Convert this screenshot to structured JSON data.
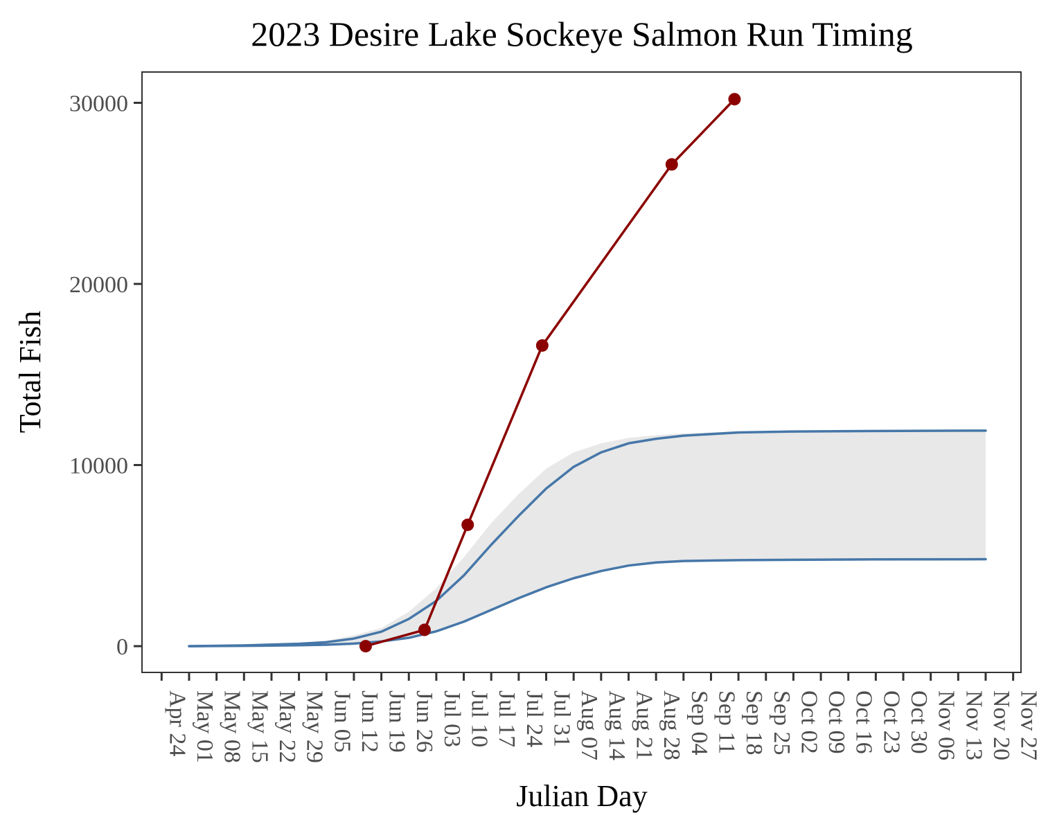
{
  "chart_data": {
    "type": "line",
    "title": "2023 Desire Lake Sockeye Salmon Run Timing",
    "xlabel": "Julian Day",
    "ylabel": "Total Fish",
    "xlim": [
      "2023-04-19",
      "2023-11-29"
    ],
    "ylim": [
      -1450,
      31700
    ],
    "grid": false,
    "legend": "none",
    "y_ticks": [
      {
        "value": 0,
        "label": "0"
      },
      {
        "value": 10000,
        "label": "10000"
      },
      {
        "value": 20000,
        "label": "20000"
      },
      {
        "value": 30000,
        "label": "30000"
      }
    ],
    "x_ticks": [
      {
        "date": "2023-04-24",
        "label": "Apr 24"
      },
      {
        "date": "2023-05-01",
        "label": "May 01"
      },
      {
        "date": "2023-05-08",
        "label": "May 08"
      },
      {
        "date": "2023-05-15",
        "label": "May 15"
      },
      {
        "date": "2023-05-22",
        "label": "May 22"
      },
      {
        "date": "2023-05-29",
        "label": "May 29"
      },
      {
        "date": "2023-06-05",
        "label": "Jun 05"
      },
      {
        "date": "2023-06-12",
        "label": "Jun 12"
      },
      {
        "date": "2023-06-19",
        "label": "Jun 19"
      },
      {
        "date": "2023-06-26",
        "label": "Jun 26"
      },
      {
        "date": "2023-07-03",
        "label": "Jul 03"
      },
      {
        "date": "2023-07-10",
        "label": "Jul 10"
      },
      {
        "date": "2023-07-17",
        "label": "Jul 17"
      },
      {
        "date": "2023-07-24",
        "label": "Jul 24"
      },
      {
        "date": "2023-07-31",
        "label": "Jul 31"
      },
      {
        "date": "2023-08-07",
        "label": "Aug 07"
      },
      {
        "date": "2023-08-14",
        "label": "Aug 14"
      },
      {
        "date": "2023-08-21",
        "label": "Aug 21"
      },
      {
        "date": "2023-08-28",
        "label": "Aug 28"
      },
      {
        "date": "2023-09-04",
        "label": "Sep 04"
      },
      {
        "date": "2023-09-11",
        "label": "Sep 11"
      },
      {
        "date": "2023-09-18",
        "label": "Sep 18"
      },
      {
        "date": "2023-09-25",
        "label": "Sep 25"
      },
      {
        "date": "2023-10-02",
        "label": "Oct 02"
      },
      {
        "date": "2023-10-09",
        "label": "Oct 09"
      },
      {
        "date": "2023-10-16",
        "label": "Oct 16"
      },
      {
        "date": "2023-10-23",
        "label": "Oct 23"
      },
      {
        "date": "2023-10-30",
        "label": "Oct 30"
      },
      {
        "date": "2023-11-06",
        "label": "Nov 06"
      },
      {
        "date": "2023-11-13",
        "label": "Nov 13"
      },
      {
        "date": "2023-11-20",
        "label": "Nov 20"
      },
      {
        "date": "2023-11-27",
        "label": "Nov 27"
      }
    ],
    "series": [
      {
        "kind": "band",
        "color": "#e8e8e8",
        "x": [
          "2023-05-01",
          "2023-05-15",
          "2023-05-29",
          "2023-06-05",
          "2023-06-12",
          "2023-06-19",
          "2023-06-26",
          "2023-07-03",
          "2023-07-10",
          "2023-07-17",
          "2023-07-24",
          "2023-07-31",
          "2023-08-07",
          "2023-08-14",
          "2023-08-21",
          "2023-08-28",
          "2023-09-04",
          "2023-09-18",
          "2023-10-02",
          "2023-10-23",
          "2023-11-20"
        ],
        "lower": [
          0,
          20,
          60,
          100,
          170,
          300,
          520,
          900,
          1400,
          2000,
          2700,
          3300,
          3800,
          4200,
          4500,
          4650,
          4720,
          4760,
          4780,
          4790,
          4800
        ],
        "upper": [
          0,
          50,
          180,
          300,
          600,
          1000,
          1900,
          3200,
          4900,
          6800,
          8400,
          9800,
          10700,
          11200,
          11500,
          11650,
          11750,
          11850,
          11880,
          11900,
          11920
        ]
      },
      {
        "kind": "line",
        "color": "#4677a8",
        "x": [
          "2023-05-01",
          "2023-05-15",
          "2023-05-29",
          "2023-06-05",
          "2023-06-12",
          "2023-06-19",
          "2023-06-26",
          "2023-07-03",
          "2023-07-10",
          "2023-07-17",
          "2023-07-24",
          "2023-07-31",
          "2023-08-07",
          "2023-08-14",
          "2023-08-21",
          "2023-08-28",
          "2023-09-04",
          "2023-09-18",
          "2023-10-02",
          "2023-10-23",
          "2023-11-20"
        ],
        "values": [
          0,
          40,
          130,
          220,
          420,
          800,
          1500,
          2500,
          3900,
          5600,
          7200,
          8700,
          9900,
          10700,
          11200,
          11450,
          11620,
          11800,
          11850,
          11880,
          11900
        ]
      },
      {
        "kind": "line",
        "color": "#4677a8",
        "x": [
          "2023-05-01",
          "2023-05-15",
          "2023-05-29",
          "2023-06-05",
          "2023-06-12",
          "2023-06-19",
          "2023-06-26",
          "2023-07-03",
          "2023-07-10",
          "2023-07-17",
          "2023-07-24",
          "2023-07-31",
          "2023-08-07",
          "2023-08-14",
          "2023-08-21",
          "2023-08-28",
          "2023-09-04",
          "2023-09-18",
          "2023-10-02",
          "2023-10-23",
          "2023-11-20"
        ],
        "values": [
          0,
          15,
          50,
          80,
          140,
          260,
          460,
          820,
          1350,
          2000,
          2650,
          3250,
          3750,
          4150,
          4450,
          4620,
          4700,
          4750,
          4770,
          4790,
          4800
        ]
      },
      {
        "kind": "line-points",
        "color": "#8b0000",
        "x": [
          "2023-06-15",
          "2023-06-30",
          "2023-07-11",
          "2023-07-30",
          "2023-09-01",
          "2023-09-17"
        ],
        "values": [
          0,
          900,
          6700,
          16600,
          26600,
          30200
        ]
      }
    ]
  }
}
